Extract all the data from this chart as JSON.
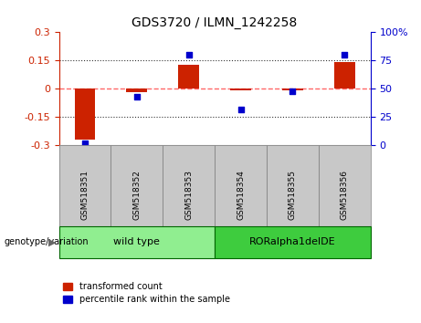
{
  "title": "GDS3720 / ILMN_1242258",
  "categories": [
    "GSM518351",
    "GSM518352",
    "GSM518353",
    "GSM518354",
    "GSM518355",
    "GSM518356"
  ],
  "red_bars": [
    -0.27,
    -0.02,
    0.13,
    -0.01,
    -0.01,
    0.14
  ],
  "blue_dots": [
    2,
    43,
    80,
    32,
    48,
    80
  ],
  "ylim_left": [
    -0.3,
    0.3
  ],
  "ylim_right": [
    0,
    100
  ],
  "yticks_left": [
    -0.3,
    -0.15,
    0,
    0.15,
    0.3
  ],
  "yticks_left_labels": [
    "-0.3",
    "-0.15",
    "0",
    "0.15",
    "0.3"
  ],
  "yticks_right": [
    0,
    25,
    50,
    75,
    100
  ],
  "yticks_right_labels": [
    "0",
    "25",
    "50",
    "75",
    "100%"
  ],
  "hlines_dotted": [
    -0.15,
    0.15
  ],
  "hline_zero": 0,
  "groups": [
    {
      "label": "wild type",
      "span": [
        0,
        3
      ],
      "color": "#90EE90"
    },
    {
      "label": "RORalpha1delDE",
      "span": [
        3,
        6
      ],
      "color": "#3ECC3E"
    }
  ],
  "group_row_label": "genotype/variation",
  "legend_red": "transformed count",
  "legend_blue": "percentile rank within the sample",
  "bar_color": "#CC2200",
  "dot_color": "#0000CC",
  "zero_line_color": "#FF6666",
  "dotted_line_color": "#333333",
  "left_axis_color": "#CC2200",
  "right_axis_color": "#0000CC",
  "background_color": "#FFFFFF",
  "plot_bg_color": "#FFFFFF",
  "tick_label_bg": "#C8C8C8",
  "group_border_color": "#006600",
  "bar_width": 0.4,
  "figsize": [
    4.61,
    3.54
  ],
  "dpi": 100
}
